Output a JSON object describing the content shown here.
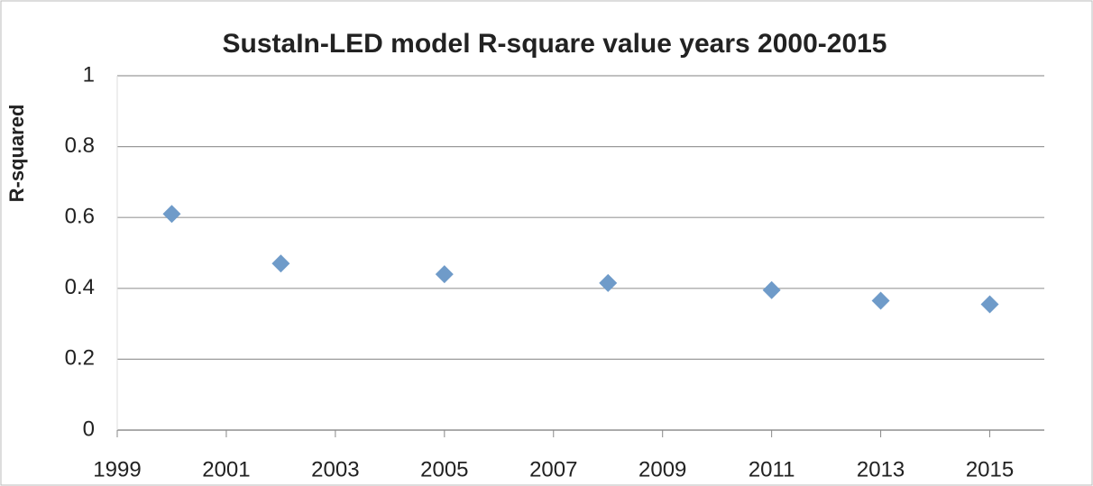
{
  "chart_data": {
    "type": "scatter",
    "title": "SustaIn-LED model R-square value years 2000-2015",
    "y_label": "R-squared",
    "x": [
      2000,
      2002,
      2005,
      2008,
      2011,
      2013,
      2015
    ],
    "values": [
      0.61,
      0.47,
      0.44,
      0.415,
      0.395,
      0.365,
      0.355
    ],
    "color": "#6f9bc9",
    "xlim": [
      1999,
      2016
    ],
    "xticks": [
      1999,
      2001,
      2003,
      2005,
      2007,
      2009,
      2011,
      2013,
      2015
    ],
    "ylim": [
      0,
      1
    ],
    "yticks": [
      0,
      0.2,
      0.4,
      0.6,
      0.8,
      1
    ],
    "grid": true
  }
}
